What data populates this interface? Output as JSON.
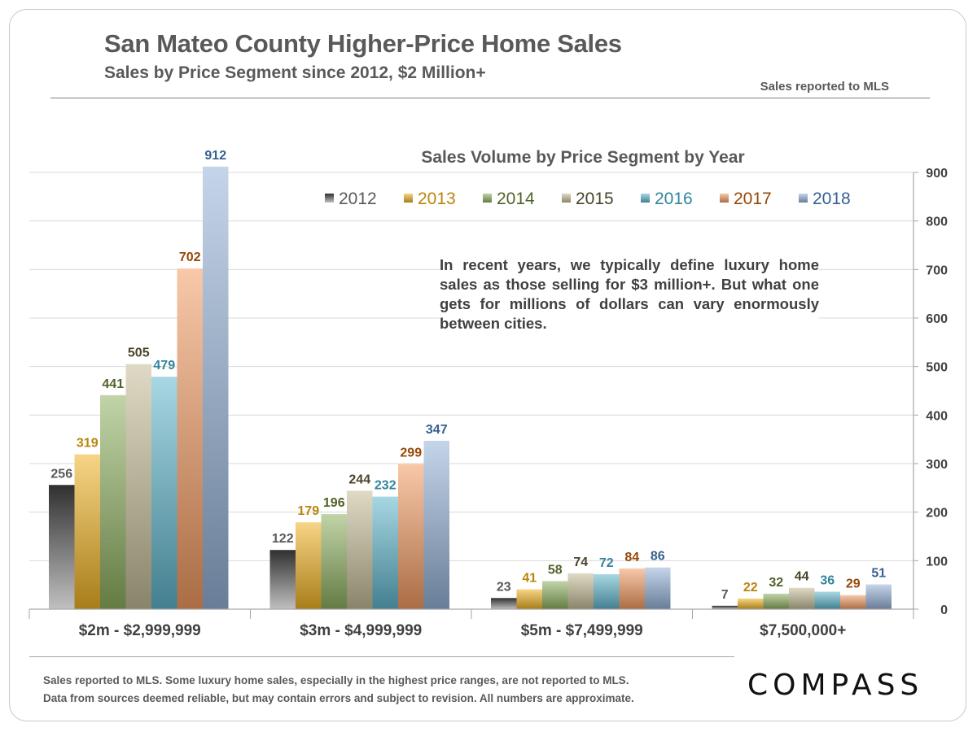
{
  "header": {
    "title": "San Mateo County Higher-Price Home Sales",
    "subtitle": "Sales by Price Segment since 2012, $2 Million+",
    "source_note": "Sales reported to MLS"
  },
  "annotation": "In recent years, we typically define luxury home sales as those selling for $3 million+. But what one gets for millions of dollars can vary enormously between cities.",
  "footer": {
    "line1": "Sales reported to MLS. Some luxury home sales, especially in the highest price ranges, are not reported to MLS.",
    "line2": "Data from sources deemed reliable, but may contain errors and subject to revision.  All numbers are approximate."
  },
  "logo": "COMPASS",
  "colors": {
    "2012": "#7f7f7f",
    "2013": "#f0b323",
    "2014": "#8fb060",
    "2015": "#c4bc96",
    "2016": "#5fb6cc",
    "2017": "#f39b62",
    "2018": "#95b3d7"
  },
  "label_colors": {
    "2012": "#595959",
    "2013": "#b8860b",
    "2014": "#4f6228",
    "2015": "#494429",
    "2016": "#31859c",
    "2017": "#974806",
    "2018": "#366092"
  },
  "chart_data": {
    "type": "bar",
    "title": "Sales Volume by Price Segment by Year",
    "categories": [
      "$2m  - $2,999,999",
      "$3m  - $4,999,999",
      "$5m  - $7,499,999",
      "$7,500,000+"
    ],
    "series": [
      {
        "name": "2012",
        "values": [
          256,
          122,
          23,
          7
        ]
      },
      {
        "name": "2013",
        "values": [
          319,
          179,
          41,
          22
        ]
      },
      {
        "name": "2014",
        "values": [
          441,
          196,
          58,
          32
        ]
      },
      {
        "name": "2015",
        "values": [
          505,
          244,
          74,
          44
        ]
      },
      {
        "name": "2016",
        "values": [
          479,
          232,
          72,
          36
        ]
      },
      {
        "name": "2017",
        "values": [
          702,
          299,
          84,
          29
        ]
      },
      {
        "name": "2018",
        "values": [
          912,
          347,
          86,
          51
        ]
      }
    ],
    "ylim": [
      0,
      900
    ],
    "y_ticks": [
      0,
      100,
      200,
      300,
      400,
      500,
      600,
      700,
      800,
      900
    ],
    "y_axis_position": "right",
    "grid": true,
    "legend": "top"
  }
}
